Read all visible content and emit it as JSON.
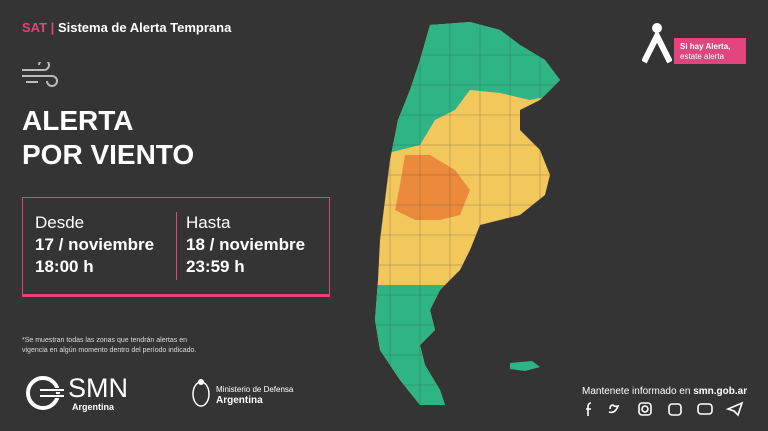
{
  "header": {
    "prefix": "SAT",
    "title": "Sistema de Alerta Temprana"
  },
  "badge": {
    "line1": "Si hay Alerta,",
    "line2": "estate alerta"
  },
  "headline": {
    "line1": "ALERTA",
    "line2": "POR VIENTO"
  },
  "period": {
    "from": {
      "label": "Desde",
      "date": "17 / noviembre",
      "time": "18:00 h"
    },
    "to": {
      "label": "Hasta",
      "date": "18 / noviembre",
      "time": "23:59 h"
    }
  },
  "footnote": {
    "line1": "*Se muestran todas las zonas que tendrán alertas en",
    "line2": "vigencia en algún momento dentro del período indicado."
  },
  "logos": {
    "smn": "SMN",
    "smn_sub": "Argentina",
    "ministry": "Ministerio de Defensa",
    "ministry_sub": "Argentina"
  },
  "contact": {
    "text": "Mantenete informado en",
    "url": "smn.gob.ar"
  }
}
